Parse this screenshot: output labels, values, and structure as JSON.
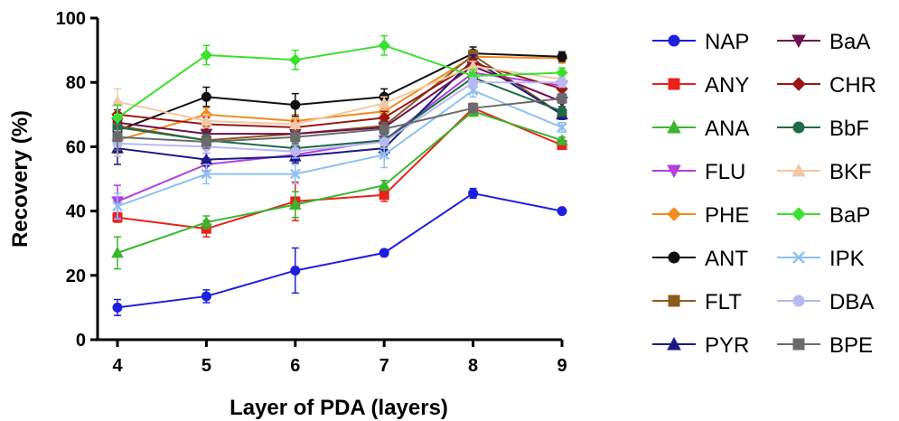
{
  "chart_data": {
    "type": "line",
    "title": "",
    "xlabel": "Layer of PDA (layers)",
    "ylabel": "Recovery (%)",
    "x": [
      4,
      5,
      6,
      7,
      8,
      9
    ],
    "xlim": [
      4,
      9
    ],
    "ylim": [
      0,
      100
    ],
    "xticks": [
      4,
      5,
      6,
      7,
      8,
      9
    ],
    "yticks": [
      0,
      20,
      40,
      60,
      80,
      100
    ],
    "grid": false,
    "legend_position": "right",
    "series": [
      {
        "name": "NAP",
        "color": "#1f1fe0",
        "marker": "circle",
        "values": [
          10,
          13.5,
          21.5,
          27,
          45.5,
          40
        ],
        "errors": [
          2.5,
          2,
          7,
          1,
          1.5,
          0
        ]
      },
      {
        "name": "ANY",
        "color": "#e8221c",
        "marker": "square",
        "values": [
          38,
          34.5,
          43,
          45,
          72,
          60.5
        ],
        "errors": [
          1.5,
          2.5,
          6,
          2,
          1.5,
          1
        ]
      },
      {
        "name": "ANA",
        "color": "#3cb52e",
        "marker": "triangle-up",
        "values": [
          27,
          36.5,
          42,
          48,
          71,
          62
        ],
        "errors": [
          5,
          2,
          4,
          1.5,
          1.5,
          1
        ]
      },
      {
        "name": "FLU",
        "color": "#b23fe0",
        "marker": "triangle-down",
        "values": [
          43,
          54.5,
          57.5,
          62,
          83,
          79
        ],
        "errors": [
          5,
          2,
          2,
          1.5,
          1.5,
          1.5
        ]
      },
      {
        "name": "PHE",
        "color": "#f28a1f",
        "marker": "diamond",
        "values": [
          62,
          70,
          68,
          71,
          88,
          87.5
        ],
        "errors": [
          4,
          2,
          2,
          2,
          1.5,
          1.5
        ]
      },
      {
        "name": "ANT",
        "color": "#111111",
        "marker": "circle",
        "values": [
          65,
          75.5,
          73,
          75.5,
          89,
          88
        ],
        "errors": [
          4,
          3,
          3.5,
          2.5,
          2,
          1.5
        ]
      },
      {
        "name": "FLT",
        "color": "#8b5a1e",
        "marker": "square",
        "values": [
          66.5,
          62,
          64,
          66.5,
          88.5,
          70
        ],
        "errors": [
          4,
          2,
          2,
          2,
          1.5,
          1.5
        ]
      },
      {
        "name": "PYR",
        "color": "#1a1a86",
        "marker": "triangle-up",
        "values": [
          59.5,
          56,
          57,
          59.5,
          87,
          70
        ],
        "errors": [
          5,
          2,
          2,
          2,
          1.5,
          1.5
        ]
      },
      {
        "name": "BaA",
        "color": "#6e0f4e",
        "marker": "triangle-down",
        "values": [
          67.5,
          64,
          64,
          66,
          85,
          74
        ],
        "errors": [
          4,
          2,
          2,
          2,
          1.5,
          1.5
        ]
      },
      {
        "name": "CHR",
        "color": "#9b1818",
        "marker": "diamond",
        "values": [
          70,
          67,
          66,
          69,
          86,
          78
        ],
        "errors": [
          4,
          2,
          2,
          2,
          1.5,
          1.5
        ]
      },
      {
        "name": "BbF",
        "color": "#1f6b45",
        "marker": "circle",
        "values": [
          66,
          62,
          59.5,
          62,
          81.5,
          71
        ],
        "errors": [
          4,
          2,
          2,
          2,
          1.5,
          1.5
        ]
      },
      {
        "name": "BKF",
        "color": "#f2c8a6",
        "marker": "triangle-up",
        "values": [
          74,
          68,
          67,
          73.5,
          85,
          81
        ],
        "errors": [
          4,
          2,
          2,
          2,
          1.5,
          1.5
        ]
      },
      {
        "name": "BaP",
        "color": "#3ce030",
        "marker": "diamond",
        "values": [
          69,
          88.5,
          87,
          91.5,
          82,
          83
        ],
        "errors": [
          4,
          3,
          3,
          3,
          2,
          1.5
        ]
      },
      {
        "name": "IPK",
        "color": "#90c0f0",
        "marker": "x",
        "values": [
          41.5,
          51.5,
          51.5,
          57.5,
          77.5,
          66
        ],
        "errors": [
          4,
          3,
          3,
          4,
          2,
          1.5
        ]
      },
      {
        "name": "DBA",
        "color": "#b8b8f2",
        "marker": "circle",
        "values": [
          61,
          60,
          58.5,
          61.5,
          80,
          80
        ],
        "errors": [
          4,
          2,
          2,
          2,
          1.5,
          1.5
        ]
      },
      {
        "name": "BPE",
        "color": "#6b6b6b",
        "marker": "square",
        "values": [
          63,
          61.5,
          63,
          65.5,
          72,
          75
        ],
        "errors": [
          4,
          2,
          2,
          2,
          1.5,
          1.5
        ]
      }
    ]
  }
}
